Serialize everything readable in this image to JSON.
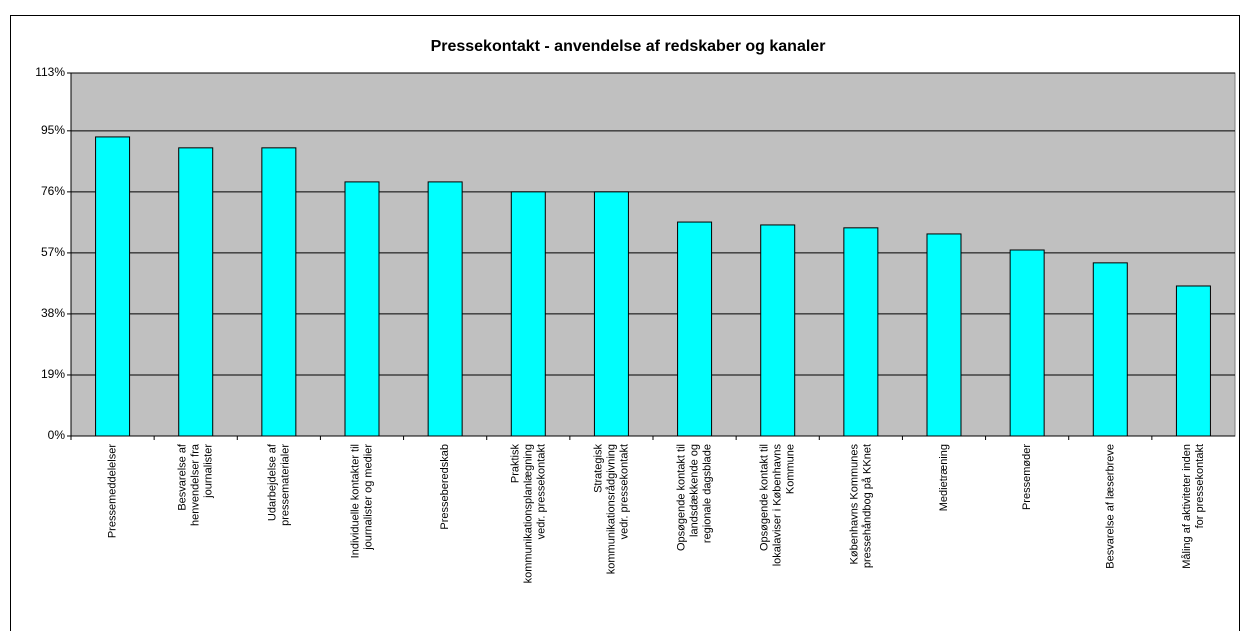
{
  "chart_data": {
    "type": "bar",
    "title": "Pressekontakt - anvendelse af redskaber og kanaler",
    "categories": [
      "Pressemeddelelser",
      "Besvarelse af\nhenvendelser fra\njournalister",
      "Udarbejdelse af\npressematerialer",
      "Individuelle kontakter til\njournalister og medier",
      "Presseberedskab",
      "Praktisk\nkommunikationsplanlægning\nvedr. pressekontakt",
      "Strategisk\nkommunikationsrådgivning\nvedr. pressekontakt",
      "Opsøgende kontakt til\nlandsdækkende og\nregionale dagsblade",
      "Opsøgende kontakt til\nlokalaviser i Københavns\nKommune",
      "Københavns Kommunes\npressehåndbog på KKnet",
      "Medietræning",
      "Pressemøder",
      "Besvarelse af læserbreve",
      "Måling af aktiviteter inden\nfor pressekontakt"
    ],
    "values": [
      93.1,
      89.7,
      89.7,
      79.1,
      79.1,
      76.0,
      76.0,
      66.6,
      65.7,
      64.8,
      62.9,
      57.9,
      53.9,
      46.7
    ],
    "color": "#00ffff",
    "plot_background": "#c0c0c0",
    "ylim": [
      0,
      113
    ],
    "yticks": [
      {
        "value": 0,
        "label": "0%"
      },
      {
        "value": 19,
        "label": "19%"
      },
      {
        "value": 38,
        "label": "38%"
      },
      {
        "value": 57,
        "label": "57%"
      },
      {
        "value": 76,
        "label": "76%"
      },
      {
        "value": 95,
        "label": "95%"
      },
      {
        "value": 113,
        "label": "113%"
      }
    ],
    "grid": true
  }
}
